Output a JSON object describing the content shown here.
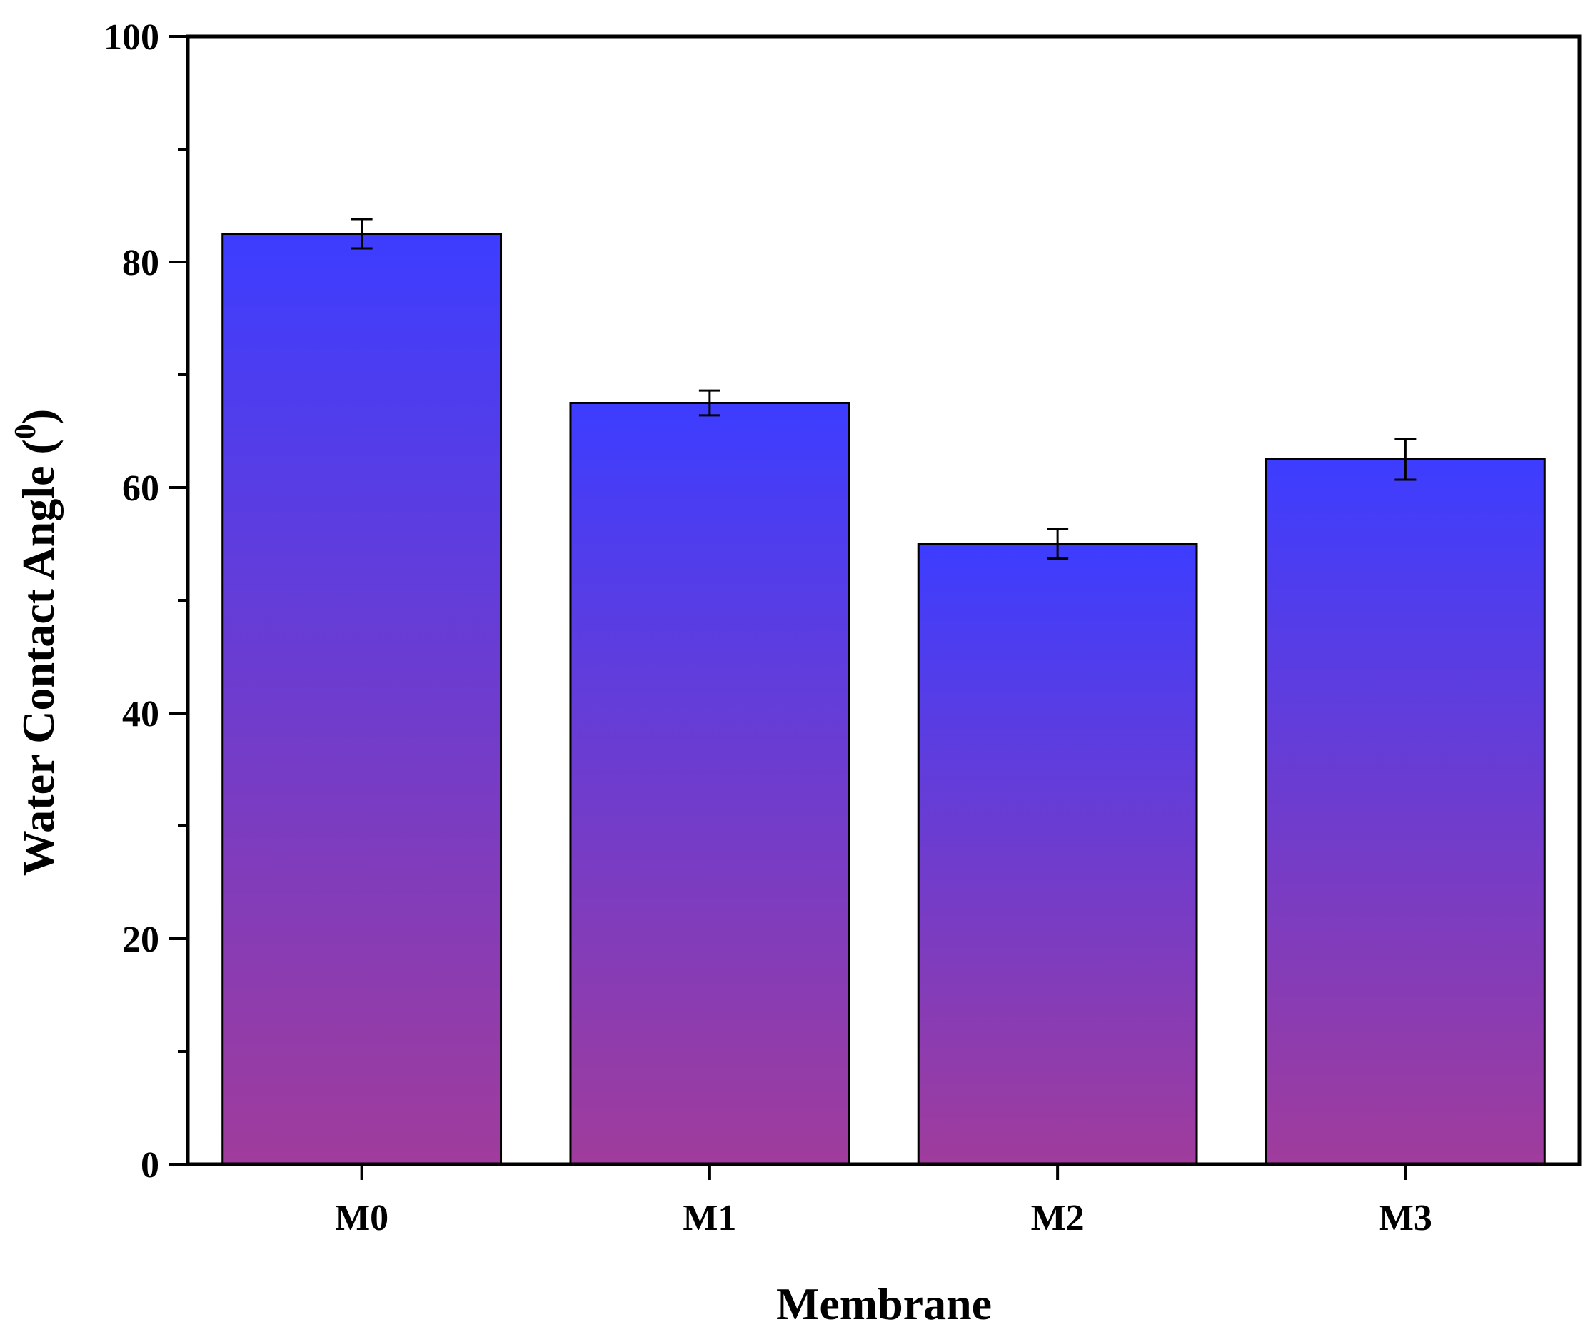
{
  "chart_data": {
    "type": "bar",
    "categories": [
      "M0",
      "M1",
      "M2",
      "M3"
    ],
    "values": [
      82.5,
      67.5,
      55.0,
      62.5
    ],
    "errors": [
      1.3,
      1.1,
      1.3,
      1.8
    ],
    "xlabel": "Membrane",
    "ylabel": "Water Contact Angle (",
    "ylabel_superscript": "0",
    "ylabel_suffix": ")",
    "ylim": [
      0,
      100
    ],
    "yticks": [
      0,
      20,
      40,
      60,
      80,
      100
    ],
    "ytick_labels": [
      "0",
      "20",
      "40",
      "60",
      "80",
      "100"
    ],
    "grid": false,
    "legend": "none",
    "colors": {
      "bar_top": "#3d3dff",
      "bar_bottom": "#a03c9c",
      "bar_edge": "#000000",
      "axis": "#000000"
    }
  }
}
